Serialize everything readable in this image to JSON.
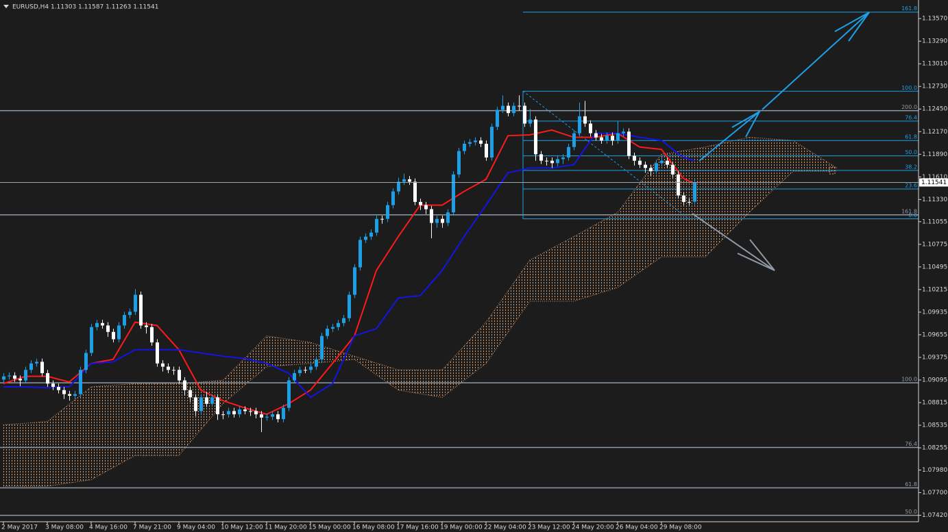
{
  "chart_data": {
    "type": "candlestick",
    "title": "EURUSD,H4  1.11303 1.11587 1.11263 1.11541",
    "categories": [
      "2 May 2017",
      null,
      null,
      null,
      null,
      null,
      null,
      null,
      "3 May 08:00",
      null,
      null,
      null,
      null,
      null,
      null,
      null,
      "4 May 16:00",
      null,
      null,
      null,
      null,
      null,
      null,
      null,
      "7 May 21:00",
      null,
      null,
      null,
      null,
      null,
      null,
      null,
      "9 May 04:00",
      null,
      null,
      null,
      null,
      null,
      null,
      null,
      "10 May 12:00",
      null,
      null,
      null,
      null,
      null,
      null,
      null,
      "11 May 20:00",
      null,
      null,
      null,
      null,
      null,
      null,
      null,
      "15 May 00:00",
      null,
      null,
      null,
      null,
      null,
      null,
      null,
      "16 May 08:00",
      null,
      null,
      null,
      null,
      null,
      null,
      null,
      "17 May 16:00",
      null,
      null,
      null,
      null,
      null,
      null,
      null,
      "19 May 00:00",
      null,
      null,
      null,
      null,
      null,
      null,
      null,
      "22 May 04:00",
      null,
      null,
      null,
      null,
      null,
      null,
      null,
      "23 May 12:00",
      null,
      null,
      null,
      null,
      null,
      null,
      null,
      "24 May 20:00",
      null,
      null,
      null,
      null,
      null,
      null,
      null,
      "26 May 04:00",
      null,
      null,
      null,
      null,
      null,
      null,
      null,
      "29 May 08:00",
      null,
      null,
      null,
      null,
      null,
      null
    ],
    "open": [
      1.091,
      1.0914,
      1.0915,
      1.0911,
      1.0909,
      1.0922,
      1.093,
      1.0932,
      1.0918,
      1.0905,
      1.0901,
      1.0897,
      1.0892,
      1.089,
      1.0892,
      1.0922,
      1.0943,
      1.0975,
      1.098,
      1.0977,
      1.0969,
      1.096,
      1.0977,
      1.099,
      1.0994,
      1.1015,
      1.0977,
      1.0975,
      1.0956,
      1.093,
      1.0926,
      1.0922,
      1.0922,
      1.0909,
      1.0897,
      1.0888,
      1.0871,
      1.0888,
      1.088,
      1.0888,
      1.0867,
      1.0867,
      1.0871,
      1.0867,
      1.0873,
      1.0871,
      1.0871,
      1.0867,
      1.0863,
      1.0864,
      1.0867,
      1.0861,
      1.0875,
      1.0909,
      1.0918,
      1.0922,
      1.0922,
      1.0926,
      1.0935,
      1.0964,
      1.0973,
      1.0975,
      1.098,
      1.0986,
      1.1015,
      1.1049,
      1.1083,
      1.1087,
      1.1092,
      1.1109,
      1.1109,
      1.1126,
      1.1143,
      1.1155,
      1.1158,
      1.1155,
      1.113,
      1.1126,
      1.1121,
      1.1104,
      1.1109,
      1.1104,
      1.1117,
      1.1164,
      1.1193,
      1.1202,
      1.1204,
      1.1206,
      1.1202,
      1.1185,
      1.1223,
      1.1244,
      1.1249,
      1.124,
      1.1249,
      1.1249,
      1.1227,
      1.1232,
      1.1189,
      1.1181,
      1.1181,
      1.1178,
      1.1183,
      1.1185,
      1.1198,
      1.1215,
      1.1236,
      1.1227,
      1.1215,
      1.121,
      1.1206,
      1.1212,
      1.1206,
      1.1215,
      1.1217,
      1.1187,
      1.1181,
      1.1176,
      1.1172,
      1.1168,
      1.1178,
      1.1181,
      1.1176,
      1.1164,
      1.1138,
      1.113,
      1.11303
    ],
    "high": [
      1.0918,
      1.0919,
      1.0919,
      1.0915,
      1.0926,
      1.0934,
      1.0936,
      1.0936,
      1.0922,
      1.0909,
      1.0905,
      1.0901,
      1.0896,
      1.0896,
      1.0926,
      1.0947,
      1.0979,
      1.0984,
      1.0984,
      1.0981,
      1.0973,
      1.0981,
      1.0994,
      1.0998,
      1.1022,
      1.1019,
      1.0981,
      1.0979,
      1.096,
      1.0934,
      1.093,
      1.0926,
      1.0926,
      1.0913,
      1.0901,
      1.0892,
      1.0892,
      1.0895,
      1.0892,
      1.0892,
      1.0871,
      1.0875,
      1.0875,
      1.0877,
      1.0877,
      1.0875,
      1.0875,
      1.0871,
      1.0868,
      1.0871,
      1.0871,
      1.0879,
      1.0913,
      1.0922,
      1.0926,
      1.0926,
      1.093,
      1.0939,
      1.0968,
      1.0977,
      1.0979,
      1.0984,
      1.099,
      1.1019,
      1.1053,
      1.1087,
      1.1091,
      1.1096,
      1.1113,
      1.1113,
      1.113,
      1.1147,
      1.116,
      1.1165,
      1.1162,
      1.1159,
      1.1134,
      1.113,
      1.1125,
      1.1113,
      1.1113,
      1.1121,
      1.1168,
      1.1197,
      1.1206,
      1.1208,
      1.121,
      1.121,
      1.1206,
      1.1227,
      1.1248,
      1.1262,
      1.1253,
      1.1253,
      1.1262,
      1.1253,
      1.1245,
      1.1236,
      1.1193,
      1.1185,
      1.1185,
      1.1187,
      1.1189,
      1.1202,
      1.1219,
      1.1253,
      1.1255,
      1.1231,
      1.1219,
      1.1214,
      1.1216,
      1.1216,
      1.123,
      1.1221,
      1.1221,
      1.1191,
      1.1185,
      1.118,
      1.1176,
      1.1182,
      1.1185,
      1.1185,
      1.118,
      1.1168,
      1.1142,
      1.1134,
      1.11587
    ],
    "low": [
      1.0906,
      1.091,
      1.0907,
      1.0902,
      1.0905,
      1.0918,
      1.0926,
      1.0914,
      1.0901,
      1.0897,
      1.0893,
      1.0886,
      1.0884,
      1.0886,
      1.0888,
      1.0918,
      1.0939,
      1.0971,
      1.0973,
      1.0963,
      1.0956,
      1.0956,
      1.0973,
      1.0986,
      1.099,
      1.0973,
      1.0967,
      1.0952,
      1.0926,
      1.092,
      1.0918,
      1.0916,
      1.0905,
      1.089,
      1.0882,
      1.0865,
      1.0867,
      1.0876,
      1.0876,
      1.086,
      1.0861,
      1.0863,
      1.0863,
      1.0863,
      1.0867,
      1.0865,
      1.0862,
      1.0845,
      1.0859,
      1.086,
      1.0857,
      1.0857,
      1.0871,
      1.0905,
      1.0914,
      1.0918,
      1.0918,
      1.0922,
      1.0931,
      1.096,
      1.0969,
      1.0971,
      1.0976,
      1.0982,
      1.1011,
      1.1045,
      1.1079,
      1.1083,
      1.1088,
      1.1103,
      1.1105,
      1.1122,
      1.1139,
      1.1151,
      1.1151,
      1.1126,
      1.112,
      1.1115,
      1.1085,
      1.1098,
      1.1098,
      1.11,
      1.1113,
      1.116,
      1.1189,
      1.1198,
      1.12,
      1.1198,
      1.1181,
      1.1181,
      1.1219,
      1.124,
      1.1236,
      1.1236,
      1.1243,
      1.1223,
      1.1223,
      1.1181,
      1.1177,
      1.1175,
      1.1172,
      1.1174,
      1.1177,
      1.1181,
      1.1194,
      1.1211,
      1.1223,
      1.1211,
      1.1206,
      1.1202,
      1.1202,
      1.12,
      1.1202,
      1.1211,
      1.1183,
      1.1175,
      1.1172,
      1.1166,
      1.1162,
      1.1164,
      1.1174,
      1.1172,
      1.116,
      1.1134,
      1.1126,
      1.1126,
      1.11263
    ],
    "close": [
      1.0914,
      1.0915,
      1.0911,
      1.0909,
      1.0922,
      1.093,
      1.0932,
      1.0918,
      1.0905,
      1.0901,
      1.0897,
      1.0892,
      1.089,
      1.0892,
      1.0922,
      1.0943,
      1.0975,
      1.098,
      1.0977,
      1.0969,
      1.096,
      1.0977,
      1.099,
      1.0994,
      1.1015,
      1.0977,
      1.0975,
      1.0956,
      1.093,
      1.0926,
      1.0922,
      1.0922,
      1.0909,
      1.0897,
      1.0888,
      1.0871,
      1.0888,
      1.088,
      1.0888,
      1.0867,
      1.0867,
      1.0871,
      1.0867,
      1.0873,
      1.0871,
      1.0871,
      1.0867,
      1.0863,
      1.0864,
      1.0867,
      1.0861,
      1.0875,
      1.0909,
      1.0918,
      1.0922,
      1.0922,
      1.0926,
      1.0935,
      1.0964,
      1.0973,
      1.0975,
      1.098,
      1.0986,
      1.1015,
      1.1049,
      1.1083,
      1.1087,
      1.1092,
      1.1109,
      1.1109,
      1.1126,
      1.1143,
      1.1155,
      1.1158,
      1.1155,
      1.113,
      1.1126,
      1.1121,
      1.1104,
      1.1109,
      1.1104,
      1.1117,
      1.1164,
      1.1193,
      1.1202,
      1.1204,
      1.1206,
      1.1202,
      1.1185,
      1.1223,
      1.1244,
      1.1249,
      1.124,
      1.1249,
      1.1249,
      1.1227,
      1.1232,
      1.1189,
      1.1181,
      1.1181,
      1.1178,
      1.1183,
      1.1185,
      1.1198,
      1.1215,
      1.1236,
      1.1227,
      1.1215,
      1.121,
      1.1206,
      1.1212,
      1.1206,
      1.1215,
      1.1217,
      1.1187,
      1.1181,
      1.1176,
      1.1172,
      1.1168,
      1.1178,
      1.1181,
      1.1176,
      1.1164,
      1.1138,
      1.113,
      1.113,
      1.11541
    ],
    "up_color": "#1ea0e6",
    "down_color": "#ffffff",
    "ylim": [
      1.0734,
      1.138
    ],
    "yticks": [
      {
        "value": 1.1357,
        "label": "1.13570"
      },
      {
        "value": 1.1329,
        "label": "1.13290"
      },
      {
        "value": 1.1301,
        "label": "1.13010"
      },
      {
        "value": 1.1273,
        "label": "1.12730"
      },
      {
        "value": 1.1245,
        "label": "1.12450"
      },
      {
        "value": 1.1217,
        "label": "1.12170"
      },
      {
        "value": 1.1189,
        "label": "1.11890"
      },
      {
        "value": 1.1161,
        "label": "1.11610"
      },
      {
        "value": 1.1133,
        "label": "1.11330"
      },
      {
        "value": 1.11055,
        "label": "1.11055"
      },
      {
        "value": 1.10775,
        "label": "1.10775"
      },
      {
        "value": 1.10495,
        "label": "1.10495"
      },
      {
        "value": 1.10215,
        "label": "1.10215"
      },
      {
        "value": 1.09935,
        "label": "1.09935"
      },
      {
        "value": 1.09655,
        "label": "1.09655"
      },
      {
        "value": 1.09375,
        "label": "1.09375"
      },
      {
        "value": 1.09095,
        "label": "1.09095"
      },
      {
        "value": 1.08815,
        "label": "1.08815"
      },
      {
        "value": 1.08535,
        "label": "1.08535"
      },
      {
        "value": 1.08255,
        "label": "1.08255"
      },
      {
        "value": 1.0798,
        "label": "1.07980"
      },
      {
        "value": 1.077,
        "label": "1.07700"
      },
      {
        "value": 1.0742,
        "label": "1.07420"
      }
    ],
    "lines": [
      {
        "color": "#ff1a1a",
        "x": [
          0,
          4,
          8,
          12,
          16,
          20,
          24,
          28,
          32,
          36,
          40,
          44,
          48,
          52,
          56,
          60,
          64,
          68,
          72,
          76,
          80,
          84,
          88,
          92,
          96,
          100,
          104,
          108,
          112,
          116,
          120,
          124,
          126
        ],
        "values": [
          1.0905,
          1.0914,
          1.0914,
          1.0907,
          1.093,
          1.0935,
          1.0981,
          1.0977,
          1.0947,
          1.0897,
          1.0884,
          1.0875,
          1.0867,
          1.088,
          1.0897,
          1.093,
          1.0964,
          1.1045,
          1.1087,
          1.1126,
          1.1126,
          1.1143,
          1.1158,
          1.1212,
          1.1213,
          1.1219,
          1.121,
          1.121,
          1.1215,
          1.1198,
          1.1195,
          1.1159,
          1.1153
        ]
      },
      {
        "color": "#1414e6",
        "x": [
          0,
          4,
          8,
          12,
          16,
          20,
          24,
          28,
          32,
          36,
          40,
          44,
          48,
          52,
          56,
          60,
          64,
          68,
          72,
          76,
          80,
          84,
          88,
          92,
          96,
          100,
          104,
          108,
          112,
          116,
          120,
          124,
          126
        ],
        "values": [
          1.0901,
          1.0901,
          1.09,
          1.0901,
          1.093,
          1.0932,
          1.0947,
          1.0947,
          1.0947,
          1.0943,
          1.0939,
          1.0936,
          1.093,
          1.0918,
          1.0888,
          1.0905,
          1.0964,
          1.0973,
          1.1011,
          1.1014,
          1.1045,
          1.1087,
          1.1126,
          1.1166,
          1.1172,
          1.1172,
          1.1176,
          1.1215,
          1.1215,
          1.121,
          1.1206,
          1.1185,
          1.1181
        ]
      }
    ],
    "cloud": {
      "color": "#e0a070",
      "x": [
        0,
        8,
        16,
        24,
        32,
        40,
        48,
        56,
        64,
        72,
        80,
        88,
        96,
        104,
        112,
        120,
        128,
        136,
        144,
        152
      ],
      "upper": [
        1.0854,
        1.0858,
        1.0901,
        1.0905,
        1.0905,
        1.0909,
        1.0964,
        1.0956,
        1.0939,
        1.0922,
        1.0922,
        1.0981,
        1.1058,
        1.1087,
        1.1117,
        1.1189,
        1.1198,
        1.121,
        1.1206,
        1.1172
      ],
      "lower": [
        1.0778,
        1.0778,
        1.0786,
        1.0816,
        1.0816,
        1.088,
        1.0926,
        1.093,
        1.0935,
        1.0897,
        1.0888,
        1.093,
        1.1007,
        1.1007,
        1.1024,
        1.1062,
        1.1062,
        1.1117,
        1.1168,
        1.1168
      ]
    },
    "fibonacci": [
      {
        "color": "#1ea0e6",
        "levels": [
          {
            "value": 1.1365,
            "label": "161.8"
          },
          {
            "value": 1.1267,
            "label": "100.0"
          },
          {
            "value": 1.123,
            "label": "76.4"
          },
          {
            "value": 1.1206,
            "label": "61.8"
          },
          {
            "value": 1.1187,
            "label": "50.0"
          },
          {
            "value": 1.1169,
            "label": "38.2"
          },
          {
            "value": 1.1146,
            "label": "23.6"
          },
          {
            "value": 1.1109,
            "label": "0.0"
          }
        ]
      },
      {
        "color": "#8e9aa6",
        "levels": [
          {
            "value": 1.1243,
            "label": "200.0"
          },
          {
            "value": 1.1114,
            "label": "161.8"
          },
          {
            "value": 1.0906,
            "label": "100.0"
          },
          {
            "value": 1.0826,
            "label": "76.4"
          },
          {
            "value": 1.0776,
            "label": "61.8"
          },
          {
            "value": 1.0742,
            "label": "50.0"
          }
        ]
      }
    ]
  }
}
